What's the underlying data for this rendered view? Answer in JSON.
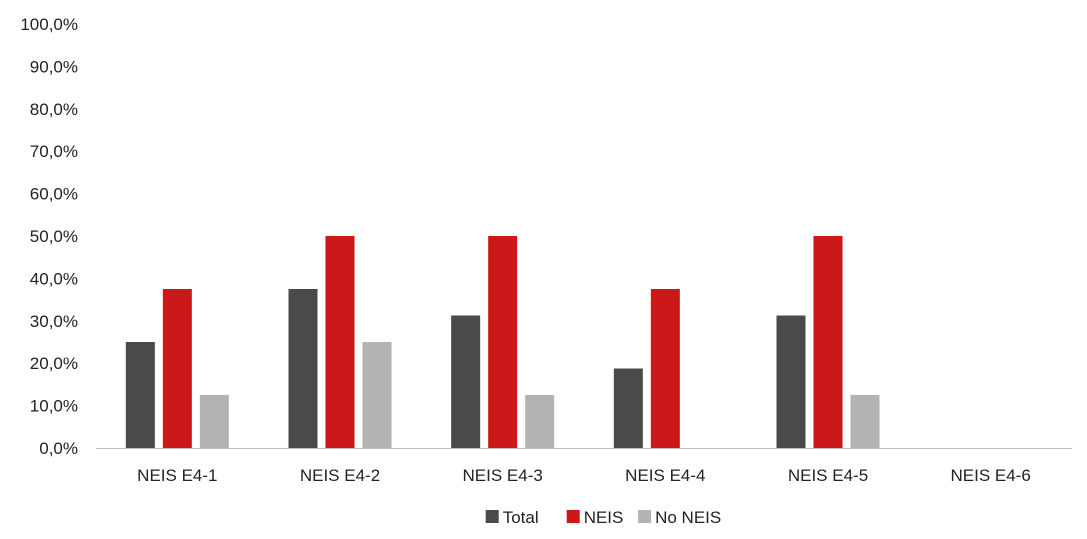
{
  "chart_data": {
    "type": "bar",
    "categories": [
      "NEIS E4-1",
      "NEIS E4-2",
      "NEIS E4-3",
      "NEIS E4-4",
      "NEIS E4-5",
      "NEIS E4-6"
    ],
    "series": [
      {
        "name": "Total",
        "color": "#4a4a4a",
        "values": [
          25.0,
          37.5,
          31.25,
          18.75,
          31.25,
          0
        ]
      },
      {
        "name": "NEIS",
        "color": "#cc1719",
        "values": [
          37.5,
          50.0,
          50.0,
          37.5,
          50.0,
          0
        ]
      },
      {
        "name": "No NEIS",
        "color": "#b3b3b3",
        "values": [
          12.5,
          25.0,
          12.5,
          0,
          12.5,
          0
        ]
      }
    ],
    "ylim": [
      0,
      100
    ],
    "yticks": [
      "0,0%",
      "10,0%",
      "20,0%",
      "30,0%",
      "40,0%",
      "50,0%",
      "60,0%",
      "70,0%",
      "80,0%",
      "90,0%",
      "100,0%"
    ],
    "grid": false,
    "legend_position": "bottom",
    "title": "",
    "xlabel": "",
    "ylabel": ""
  }
}
